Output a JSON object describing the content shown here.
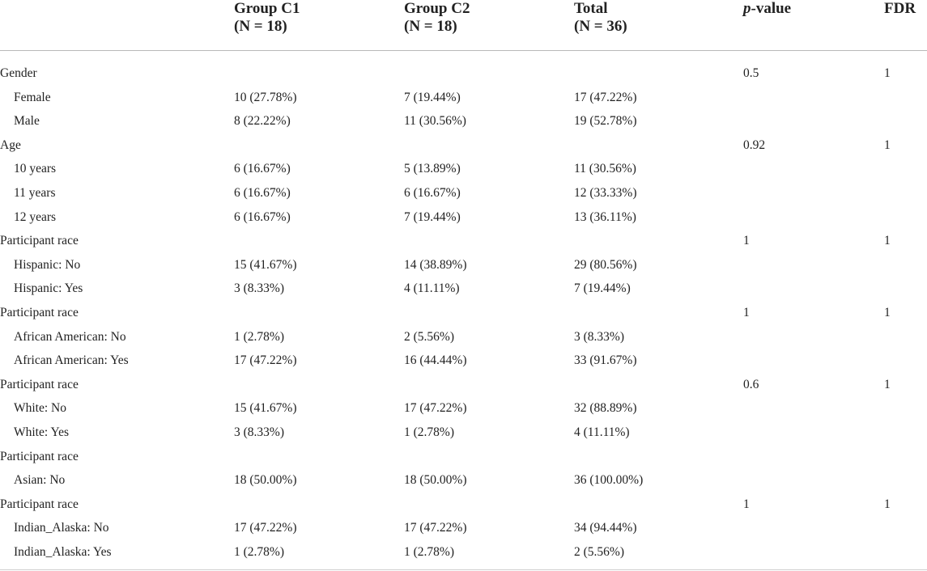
{
  "header": {
    "col_label": "",
    "col_group_c1_line1": "Group C1",
    "col_group_c1_line2": "(N = 18)",
    "col_group_c2_line1": "Group C2",
    "col_group_c2_line2": "(N = 18)",
    "col_total_line1": "Total",
    "col_total_line2": "(N = 36)",
    "col_p_italic": "p",
    "col_p_rest": "-value",
    "col_fdr": "FDR"
  },
  "rows": [
    {
      "label": "Gender",
      "c1": "",
      "c2": "",
      "total": "",
      "p": "0.5",
      "fdr": "1",
      "kind": "group"
    },
    {
      "label": "Female",
      "c1": "10 (27.78%)",
      "c2": "7 (19.44%)",
      "total": "17 (47.22%)",
      "p": "",
      "fdr": "",
      "kind": "sub"
    },
    {
      "label": "Male",
      "c1": "8 (22.22%)",
      "c2": "11 (30.56%)",
      "total": "19 (52.78%)",
      "p": "",
      "fdr": "",
      "kind": "sub"
    },
    {
      "label": "Age",
      "c1": "",
      "c2": "",
      "total": "",
      "p": "0.92",
      "fdr": "1",
      "kind": "group"
    },
    {
      "label": "10 years",
      "c1": "6 (16.67%)",
      "c2": "5 (13.89%)",
      "total": "11 (30.56%)",
      "p": "",
      "fdr": "",
      "kind": "sub"
    },
    {
      "label": "11 years",
      "c1": "6 (16.67%)",
      "c2": "6 (16.67%)",
      "total": "12 (33.33%)",
      "p": "",
      "fdr": "",
      "kind": "sub"
    },
    {
      "label": "12 years",
      "c1": "6 (16.67%)",
      "c2": "7 (19.44%)",
      "total": "13 (36.11%)",
      "p": "",
      "fdr": "",
      "kind": "sub"
    },
    {
      "label": "Participant race",
      "c1": "",
      "c2": "",
      "total": "",
      "p": "1",
      "fdr": "1",
      "kind": "group"
    },
    {
      "label": "Hispanic: No",
      "c1": "15 (41.67%)",
      "c2": "14 (38.89%)",
      "total": "29 (80.56%)",
      "p": "",
      "fdr": "",
      "kind": "sub"
    },
    {
      "label": "Hispanic: Yes",
      "c1": "3 (8.33%)",
      "c2": "4 (11.11%)",
      "total": "7 (19.44%)",
      "p": "",
      "fdr": "",
      "kind": "sub"
    },
    {
      "label": "Participant race",
      "c1": "",
      "c2": "",
      "total": "",
      "p": "1",
      "fdr": "1",
      "kind": "group"
    },
    {
      "label": "African American: No",
      "c1": "1 (2.78%)",
      "c2": "2 (5.56%)",
      "total": "3 (8.33%)",
      "p": "",
      "fdr": "",
      "kind": "sub"
    },
    {
      "label": "African American: Yes",
      "c1": "17 (47.22%)",
      "c2": "16 (44.44%)",
      "total": "33 (91.67%)",
      "p": "",
      "fdr": "",
      "kind": "sub"
    },
    {
      "label": "Participant race",
      "c1": "",
      "c2": "",
      "total": "",
      "p": "0.6",
      "fdr": "1",
      "kind": "group"
    },
    {
      "label": "White: No",
      "c1": "15 (41.67%)",
      "c2": "17 (47.22%)",
      "total": "32 (88.89%)",
      "p": "",
      "fdr": "",
      "kind": "sub"
    },
    {
      "label": "White: Yes",
      "c1": "3 (8.33%)",
      "c2": "1 (2.78%)",
      "total": "4 (11.11%)",
      "p": "",
      "fdr": "",
      "kind": "sub"
    },
    {
      "label": "Participant race",
      "c1": "",
      "c2": "",
      "total": "",
      "p": "",
      "fdr": "",
      "kind": "group"
    },
    {
      "label": "Asian: No",
      "c1": "18 (50.00%)",
      "c2": "18 (50.00%)",
      "total": "36 (100.00%)",
      "p": "",
      "fdr": "",
      "kind": "sub"
    },
    {
      "label": "Participant race",
      "c1": "",
      "c2": "",
      "total": "",
      "p": "1",
      "fdr": "1",
      "kind": "group"
    },
    {
      "label": "Indian_Alaska: No",
      "c1": "17 (47.22%)",
      "c2": "17 (47.22%)",
      "total": "34 (94.44%)",
      "p": "",
      "fdr": "",
      "kind": "sub"
    },
    {
      "label": "Indian_Alaska: Yes",
      "c1": "1 (2.78%)",
      "c2": "1 (2.78%)",
      "total": "2 (5.56%)",
      "p": "",
      "fdr": "",
      "kind": "sub"
    }
  ]
}
